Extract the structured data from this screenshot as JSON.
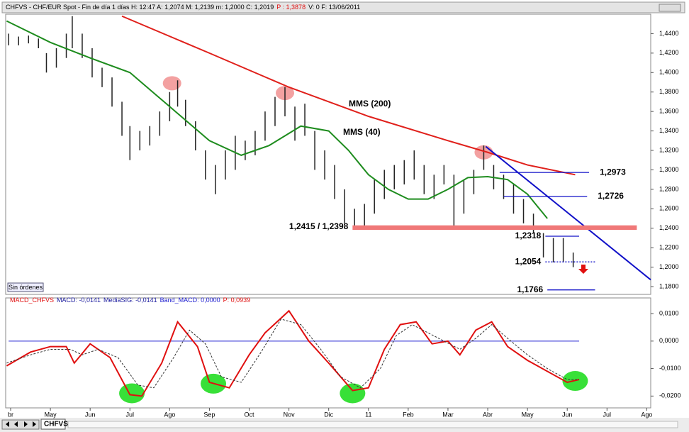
{
  "header": [
    "CHFVS - CHF/EUR Spot - Fin de día 1 días  H: 12:47  A: 1,2074  M: 1,2139  m: 1,2000  C: 1,2019",
    "P : 1,3878",
    "V: 0  F: 13/06/2011"
  ],
  "button": "Sin órdenes",
  "tab": "CHFVS",
  "chart_data": [
    {
      "type": "ohlc",
      "xlim": [
        -0.125,
        16.1
      ],
      "ylim": [
        1.172,
        1.46
      ],
      "xticks": [
        {
          "value": 0,
          "label": "br"
        },
        {
          "value": 1,
          "label": "May"
        },
        {
          "value": 2,
          "label": "Jun"
        },
        {
          "value": 3,
          "label": "Jul"
        },
        {
          "value": 4,
          "label": "Ago"
        },
        {
          "value": 5,
          "label": "Sep"
        },
        {
          "value": 6,
          "label": "Oct"
        },
        {
          "value": 7,
          "label": "Nov"
        },
        {
          "value": 8,
          "label": "Dic"
        },
        {
          "value": 9,
          "label": "11"
        },
        {
          "value": 10,
          "label": "Feb"
        },
        {
          "value": 11,
          "label": "Mar"
        },
        {
          "value": 12,
          "label": "Abr"
        },
        {
          "value": 13,
          "label": "May"
        },
        {
          "value": 14,
          "label": "Jun"
        },
        {
          "value": 15,
          "label": "Jul"
        },
        {
          "value": 16,
          "label": "Ago"
        }
      ],
      "yticks": [
        {
          "value": 1.18,
          "label": "1,1800"
        },
        {
          "value": 1.2,
          "label": "1,2000"
        },
        {
          "value": 1.22,
          "label": "1,2200"
        },
        {
          "value": 1.24,
          "label": "1,2400"
        },
        {
          "value": 1.26,
          "label": "1,2600"
        },
        {
          "value": 1.28,
          "label": "1,2800"
        },
        {
          "value": 1.3,
          "label": "1,3000"
        },
        {
          "value": 1.32,
          "label": "1,3200"
        },
        {
          "value": 1.34,
          "label": "1,3400"
        },
        {
          "value": 1.36,
          "label": "1,3600"
        },
        {
          "value": 1.38,
          "label": "1,3800"
        },
        {
          "value": 1.4,
          "label": "1,4000"
        },
        {
          "value": 1.42,
          "label": "1,4200"
        },
        {
          "value": 1.44,
          "label": "1,4400"
        }
      ],
      "color": "#222222",
      "x": [
        -0.05,
        0.2,
        0.45,
        0.7,
        0.9,
        1.15,
        1.4,
        1.55,
        1.8,
        2.05,
        2.3,
        2.55,
        2.8,
        3.0,
        3.25,
        3.5,
        3.75,
        4.0,
        4.2,
        4.4,
        4.65,
        4.9,
        5.15,
        5.4,
        5.65,
        5.9,
        6.15,
        6.4,
        6.65,
        6.9,
        7.15,
        7.4,
        7.65,
        7.9,
        8.15,
        8.4,
        8.65,
        8.9,
        9.15,
        9.4,
        9.65,
        9.9,
        10.15,
        10.4,
        10.65,
        10.9,
        11.15,
        11.4,
        11.65,
        11.9,
        12.15,
        12.4,
        12.65,
        12.9,
        13.15,
        13.4,
        13.65,
        13.9,
        14.15
      ],
      "high": [
        1.44,
        1.437,
        1.438,
        1.435,
        1.42,
        1.425,
        1.44,
        1.458,
        1.44,
        1.425,
        1.405,
        1.395,
        1.37,
        1.345,
        1.34,
        1.345,
        1.36,
        1.38,
        1.392,
        1.372,
        1.35,
        1.32,
        1.305,
        1.32,
        1.335,
        1.33,
        1.34,
        1.36,
        1.375,
        1.385,
        1.365,
        1.368,
        1.34,
        1.32,
        1.305,
        1.28,
        1.26,
        1.265,
        1.29,
        1.3,
        1.305,
        1.31,
        1.32,
        1.305,
        1.295,
        1.305,
        1.295,
        1.29,
        1.3,
        1.325,
        1.305,
        1.295,
        1.285,
        1.27,
        1.255,
        1.235,
        1.23,
        1.23,
        1.215
      ],
      "low": [
        1.428,
        1.428,
        1.43,
        1.425,
        1.4,
        1.405,
        1.415,
        1.425,
        1.415,
        1.395,
        1.385,
        1.365,
        1.335,
        1.31,
        1.32,
        1.325,
        1.335,
        1.35,
        1.365,
        1.345,
        1.32,
        1.29,
        1.275,
        1.29,
        1.3,
        1.31,
        1.315,
        1.33,
        1.345,
        1.355,
        1.33,
        1.335,
        1.3,
        1.29,
        1.27,
        1.245,
        1.24,
        1.242,
        1.255,
        1.27,
        1.28,
        1.285,
        1.29,
        1.275,
        1.27,
        1.285,
        1.24,
        1.255,
        1.275,
        1.3,
        1.28,
        1.27,
        1.255,
        1.245,
        1.235,
        1.21,
        1.205,
        1.205,
        1.2
      ],
      "series": [
        {
          "name": "MMS (200)",
          "color": "#e0201b",
          "x": [
            2.8,
            5,
            7,
            9,
            11,
            12,
            13,
            14.2
          ],
          "values": [
            1.458,
            1.42,
            1.385,
            1.355,
            1.33,
            1.318,
            1.305,
            1.295
          ]
        },
        {
          "name": "MMS (40)",
          "color": "#1e8c1e",
          "x": [
            -0.1,
            1,
            2,
            3,
            4,
            5,
            5.8,
            6.5,
            7.3,
            8,
            8.5,
            9,
            9.5,
            10,
            10.5,
            11,
            11.5,
            12,
            12.5,
            13,
            13.5
          ],
          "values": [
            1.453,
            1.431,
            1.415,
            1.4,
            1.365,
            1.33,
            1.315,
            1.325,
            1.345,
            1.34,
            1.32,
            1.295,
            1.28,
            1.27,
            1.27,
            1.28,
            1.292,
            1.293,
            1.29,
            1.275,
            1.25
          ]
        }
      ],
      "highlights": [
        {
          "x": 4.06,
          "y": 1.389
        },
        {
          "x": 6.9,
          "y": 1.379
        },
        {
          "x": 11.9,
          "y": 1.318
        }
      ],
      "trendline": {
        "x": [
          11.95,
          16.1
        ],
        "values": [
          1.324,
          1.187
        ],
        "color": "#1010c8"
      },
      "levels": [
        {
          "label": "1,2973",
          "values": [
            1.2973
          ],
          "from": 12.3,
          "to": 14.55,
          "color": "#1010c8",
          "label_side": "right"
        },
        {
          "label": "1,2726",
          "values": [
            1.2726
          ],
          "from": 12.4,
          "to": 14.5,
          "color": "#1010c8",
          "label_side": "right"
        },
        {
          "label": "1,2415 / 1,2398",
          "values": [
            1.2415,
            1.2398
          ],
          "from": 8.6,
          "to": 15.75,
          "color": "#f07878",
          "label_side": "left"
        },
        {
          "label": "1,2318",
          "values": [
            1.2318
          ],
          "from": 13.45,
          "to": 14.3,
          "color": "#1010c8",
          "label_side": "left"
        },
        {
          "label": "1,2054",
          "values": [
            1.2054
          ],
          "from": 13.45,
          "to": 14.7,
          "color": "#1010c8",
          "dashed": true,
          "label_side": "left"
        },
        {
          "label": "1,1766",
          "values": [
            1.1766
          ],
          "from": 13.5,
          "to": 14.7,
          "color": "#1010c8",
          "label_side": "left"
        }
      ]
    },
    {
      "type": "line",
      "title": [
        "MACD_CHFVS",
        "MACD: -0,0141",
        "MediaSIG: -0,0141",
        "Band_MACD: 0,0000",
        "P: 0,0939"
      ],
      "ylim": [
        -0.0243,
        0.0157
      ],
      "yticks": [
        {
          "value": -0.02,
          "label": "-0,0200"
        },
        {
          "value": -0.01,
          "label": "-0,0100"
        },
        {
          "value": 0,
          "label": "0,0000"
        },
        {
          "value": 0.01,
          "label": "0,0100"
        }
      ],
      "band": {
        "value": 0,
        "from": -0.05,
        "to": 14.3,
        "color": "#2020d0"
      },
      "series": [
        {
          "name": "MACD",
          "color": "#e01010",
          "x": [
            -0.1,
            0.5,
            1,
            1.4,
            1.6,
            2,
            2.5,
            3,
            3.3,
            3.8,
            4.2,
            4.7,
            5,
            5.5,
            6,
            6.4,
            7,
            7.5,
            8,
            8.6,
            9,
            9.4,
            9.8,
            10.2,
            10.6,
            11,
            11.3,
            11.7,
            12.1,
            12.5,
            13,
            13.5,
            14,
            14.3
          ],
          "values": [
            -0.009,
            -0.004,
            -0.002,
            -0.002,
            -0.008,
            -0.001,
            -0.006,
            -0.0195,
            -0.02,
            -0.008,
            0.007,
            -0.002,
            -0.015,
            -0.017,
            -0.005,
            0.003,
            0.011,
            0,
            -0.008,
            -0.018,
            -0.017,
            -0.003,
            0.006,
            0.007,
            -0.001,
            0,
            -0.005,
            0.004,
            0.007,
            -0.002,
            -0.007,
            -0.011,
            -0.015,
            -0.014
          ]
        },
        {
          "name": "MediaSIG",
          "color": "#333333",
          "dashed": true,
          "x": [
            -0.1,
            0.5,
            1,
            1.5,
            1.8,
            2.2,
            2.7,
            3.2,
            3.6,
            4.1,
            4.5,
            4.9,
            5.3,
            5.8,
            6.3,
            6.8,
            7.3,
            7.8,
            8.3,
            8.8,
            9.3,
            9.7,
            10.1,
            10.5,
            10.9,
            11.3,
            11.7,
            12.1,
            12.5,
            13,
            13.5,
            14,
            14.3
          ],
          "values": [
            -0.008,
            -0.005,
            -0.003,
            -0.003,
            -0.005,
            -0.003,
            -0.006,
            -0.016,
            -0.017,
            -0.006,
            0.004,
            -0.001,
            -0.013,
            -0.015,
            -0.004,
            0.008,
            0.006,
            -0.003,
            -0.013,
            -0.017,
            -0.01,
            0.002,
            0.006,
            0.003,
            0.0,
            -0.003,
            0.001,
            0.006,
            0.001,
            -0.005,
            -0.01,
            -0.014,
            -0.014
          ]
        }
      ],
      "highlights": [
        {
          "x": 3.05,
          "y": -0.019
        },
        {
          "x": 5.1,
          "y": -0.0155
        },
        {
          "x": 8.6,
          "y": -0.019
        },
        {
          "x": 14.2,
          "y": -0.0145
        }
      ]
    }
  ]
}
